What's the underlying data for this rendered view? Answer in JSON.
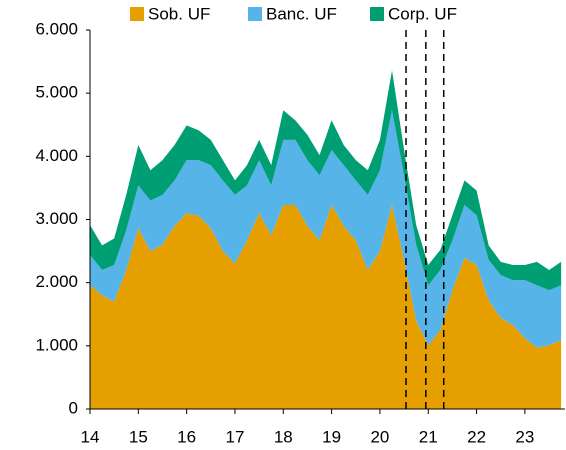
{
  "chart_data": {
    "type": "stacked_area",
    "x": [
      14,
      14.25,
      14.5,
      14.75,
      15,
      15.25,
      15.5,
      15.75,
      16,
      16.25,
      16.5,
      16.75,
      17,
      17.25,
      17.5,
      17.75,
      18,
      18.25,
      18.5,
      18.75,
      19,
      19.25,
      19.5,
      19.75,
      20,
      20.25,
      20.5,
      20.75,
      21,
      21.25,
      21.5,
      21.75,
      22,
      22.25,
      22.5,
      22.75,
      23,
      23.25,
      23.5,
      23.75
    ],
    "series": [
      {
        "name": "Sob. UF",
        "color": "#e69f00",
        "values": [
          1960,
          1800,
          1700,
          2200,
          2860,
          2500,
          2600,
          2900,
          3100,
          3060,
          2860,
          2500,
          2300,
          2670,
          3100,
          2750,
          3230,
          3230,
          2900,
          2670,
          3230,
          2900,
          2670,
          2200,
          2500,
          3230,
          2350,
          1400,
          1010,
          1250,
          1880,
          2390,
          2280,
          1720,
          1440,
          1330,
          1120,
          970,
          1010,
          1090
        ]
      },
      {
        "name": "Banc. UF",
        "color": "#56b4e9",
        "values": [
          480,
          400,
          580,
          630,
          680,
          800,
          790,
          720,
          840,
          880,
          1000,
          1120,
          1090,
          870,
          840,
          790,
          1030,
          1030,
          1040,
          1030,
          870,
          960,
          950,
          1190,
          1280,
          1500,
          1350,
          1200,
          950,
          950,
          790,
          840,
          790,
          640,
          680,
          710,
          920,
          990,
          870,
          870
        ]
      },
      {
        "name": "Corp. UF",
        "color": "#009e73",
        "values": [
          470,
          390,
          420,
          560,
          640,
          480,
          550,
          560,
          550,
          470,
          400,
          320,
          230,
          320,
          320,
          320,
          470,
          310,
          400,
          320,
          470,
          320,
          320,
          390,
          480,
          630,
          400,
          310,
          320,
          320,
          400,
          390,
          390,
          230,
          210,
          240,
          240,
          370,
          320,
          370
        ]
      }
    ],
    "xlim": [
      14,
      23.83
    ],
    "xticks": [
      14,
      15,
      16,
      17,
      18,
      19,
      20,
      21,
      22,
      23
    ],
    "ylim": [
      0,
      6000
    ],
    "yticks": [
      0,
      {
        "value": 1000,
        "label": "1.000"
      },
      {
        "value": 2000,
        "label": "2.000"
      },
      {
        "value": 3000,
        "label": "3.000"
      },
      {
        "value": 4000,
        "label": "4.000"
      },
      {
        "value": 5000,
        "label": "5.000"
      },
      {
        "value": 6000,
        "label": "6.000"
      }
    ],
    "vlines": [
      20.54,
      20.95,
      21.32
    ],
    "legend": "top"
  }
}
